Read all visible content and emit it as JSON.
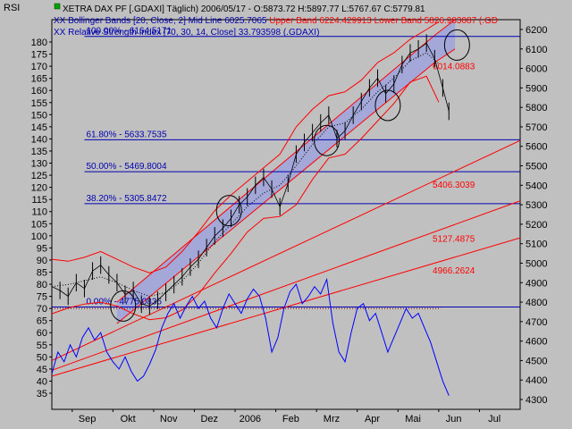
{
  "chart_data": {
    "type": "line",
    "corner_label": "RSI",
    "header": {
      "line1": "XETRA DAX PF [.GDAXI]  Täglich) 2006/05/17 - O:5873.72 H:5897.77 L:5767.67 C:5779.81",
      "line2_prefix": "XX Bollinger Bands [20, Close, 2] Mid Line 6025.7065 ",
      "line2_red": "Upper Band 6224.429913 Lower Band 5826.983087 (.GD",
      "line3": "XX Relative Strength Index [70, 30, 14, Close] 33.793598 (.GDAXI)"
    },
    "x_tick_labels": [
      {
        "label": "Sep",
        "t": 1
      },
      {
        "label": "Okt",
        "t": 2
      },
      {
        "label": "Nov",
        "t": 3
      },
      {
        "label": "Dez",
        "t": 4
      },
      {
        "label": "2006",
        "t": 5
      },
      {
        "label": "Feb",
        "t": 6
      },
      {
        "label": "Mrz",
        "t": 7
      },
      {
        "label": "Apr",
        "t": 8
      },
      {
        "label": "Mai",
        "t": 9
      },
      {
        "label": "Jun",
        "t": 10
      },
      {
        "label": "Jul",
        "t": 11
      }
    ],
    "x_range": [
      0,
      11.5
    ],
    "left_axis": {
      "name": "RSI",
      "min": 35,
      "max": 180,
      "step": 5,
      "ticks": [
        180,
        175,
        170,
        165,
        160,
        155,
        150,
        145,
        140,
        135,
        130,
        125,
        120,
        115,
        110,
        105,
        100,
        95,
        90,
        85,
        80,
        75,
        70,
        65,
        60,
        55,
        50,
        45,
        40,
        35
      ]
    },
    "right_axis": {
      "name": "Price",
      "min": 4300,
      "max": 6200,
      "step": 100,
      "ticks": [
        6200,
        6100,
        6000,
        5900,
        5800,
        5700,
        5600,
        5500,
        5400,
        5300,
        5200,
        5100,
        5000,
        4900,
        4800,
        4700,
        4600,
        4500,
        4400,
        4300
      ]
    },
    "fibonacci_levels": [
      {
        "label": "100.00% - 6164.5171",
        "value": 6164.5171
      },
      {
        "label": "61.80% - 5633.7535",
        "value": 5633.7535
      },
      {
        "label": "50.00% - 5469.8004",
        "value": 5469.8004
      },
      {
        "label": "38.20% - 5305.8472",
        "value": 5305.8472
      },
      {
        "label": "0.00% - 4775.0836",
        "value": 4775.0836
      }
    ],
    "trendline_labels": [
      {
        "label": "6014.0883",
        "value": 6014.0883
      },
      {
        "label": "5406.3039",
        "value": 5406.3039
      },
      {
        "label": "5127.4875",
        "value": 5127.4875
      },
      {
        "label": "4966.2624",
        "value": 4966.2624
      }
    ],
    "trendlines": [
      {
        "from": [
          0,
          4500
        ],
        "to": [
          11.5,
          5630
        ]
      },
      {
        "from": [
          0,
          4450
        ],
        "to": [
          11.5,
          5320
        ]
      },
      {
        "from": [
          0,
          4420
        ],
        "to": [
          11.5,
          5130
        ]
      }
    ],
    "channel": {
      "upper": [
        [
          1.6,
          4800
        ],
        [
          9.4,
          6170
        ]
      ],
      "lower": [
        [
          1.6,
          4690
        ],
        [
          9.4,
          6030
        ]
      ],
      "extension_upper": [
        [
          9.4,
          6170
        ],
        [
          9.9,
          6250
        ]
      ],
      "extension_lower": [
        [
          9.4,
          6030
        ],
        [
          9.9,
          6100
        ]
      ]
    },
    "price_close": [
      [
        0.0,
        4880
      ],
      [
        0.2,
        4860
      ],
      [
        0.4,
        4830
      ],
      [
        0.6,
        4900
      ],
      [
        0.8,
        4870
      ],
      [
        1.0,
        4960
      ],
      [
        1.2,
        4990
      ],
      [
        1.4,
        4940
      ],
      [
        1.6,
        4900
      ],
      [
        1.8,
        4840
      ],
      [
        2.0,
        4860
      ],
      [
        2.2,
        4790
      ],
      [
        2.4,
        4780
      ],
      [
        2.6,
        4810
      ],
      [
        2.8,
        4850
      ],
      [
        3.0,
        4890
      ],
      [
        3.2,
        4930
      ],
      [
        3.4,
        4980
      ],
      [
        3.6,
        5020
      ],
      [
        3.8,
        5080
      ],
      [
        4.0,
        5140
      ],
      [
        4.2,
        5180
      ],
      [
        4.4,
        5230
      ],
      [
        4.6,
        5300
      ],
      [
        4.8,
        5340
      ],
      [
        5.0,
        5400
      ],
      [
        5.2,
        5440
      ],
      [
        5.4,
        5380
      ],
      [
        5.6,
        5290
      ],
      [
        5.8,
        5410
      ],
      [
        6.0,
        5560
      ],
      [
        6.2,
        5620
      ],
      [
        6.4,
        5670
      ],
      [
        6.6,
        5720
      ],
      [
        6.8,
        5760
      ],
      [
        7.0,
        5640
      ],
      [
        7.2,
        5680
      ],
      [
        7.4,
        5760
      ],
      [
        7.6,
        5830
      ],
      [
        7.8,
        5900
      ],
      [
        8.0,
        5950
      ],
      [
        8.2,
        5870
      ],
      [
        8.4,
        5920
      ],
      [
        8.6,
        6020
      ],
      [
        8.8,
        6080
      ],
      [
        9.0,
        6100
      ],
      [
        9.2,
        6130
      ],
      [
        9.4,
        6050
      ],
      [
        9.6,
        5900
      ],
      [
        9.75,
        5780
      ]
    ],
    "bollinger_upper": [
      [
        0.0,
        5020
      ],
      [
        0.4,
        5010
      ],
      [
        0.8,
        5030
      ],
      [
        1.2,
        5060
      ],
      [
        1.6,
        5020
      ],
      [
        2.0,
        4980
      ],
      [
        2.4,
        4950
      ],
      [
        2.8,
        4980
      ],
      [
        3.2,
        5060
      ],
      [
        3.6,
        5160
      ],
      [
        4.0,
        5270
      ],
      [
        4.4,
        5350
      ],
      [
        4.8,
        5420
      ],
      [
        5.2,
        5490
      ],
      [
        5.6,
        5560
      ],
      [
        6.0,
        5700
      ],
      [
        6.4,
        5790
      ],
      [
        6.8,
        5860
      ],
      [
        7.2,
        5880
      ],
      [
        7.6,
        5940
      ],
      [
        8.0,
        6030
      ],
      [
        8.4,
        6080
      ],
      [
        8.8,
        6150
      ],
      [
        9.2,
        6200
      ],
      [
        9.5,
        6240
      ]
    ],
    "bollinger_mid": [
      [
        0.0,
        4880
      ],
      [
        0.4,
        4890
      ],
      [
        0.8,
        4910
      ],
      [
        1.2,
        4930
      ],
      [
        1.6,
        4900
      ],
      [
        2.0,
        4860
      ],
      [
        2.4,
        4830
      ],
      [
        2.8,
        4850
      ],
      [
        3.2,
        4910
      ],
      [
        3.6,
        5000
      ],
      [
        4.0,
        5110
      ],
      [
        4.4,
        5200
      ],
      [
        4.8,
        5290
      ],
      [
        5.2,
        5360
      ],
      [
        5.6,
        5400
      ],
      [
        6.0,
        5500
      ],
      [
        6.4,
        5610
      ],
      [
        6.8,
        5700
      ],
      [
        7.2,
        5720
      ],
      [
        7.6,
        5790
      ],
      [
        8.0,
        5880
      ],
      [
        8.4,
        5950
      ],
      [
        8.8,
        6040
      ],
      [
        9.2,
        6080
      ],
      [
        9.5,
        6025
      ]
    ],
    "bollinger_lower": [
      [
        0.0,
        4740
      ],
      [
        0.4,
        4770
      ],
      [
        0.8,
        4790
      ],
      [
        1.2,
        4800
      ],
      [
        1.6,
        4780
      ],
      [
        2.0,
        4740
      ],
      [
        2.4,
        4710
      ],
      [
        2.8,
        4720
      ],
      [
        3.2,
        4760
      ],
      [
        3.6,
        4840
      ],
      [
        4.0,
        4950
      ],
      [
        4.4,
        5050
      ],
      [
        4.8,
        5160
      ],
      [
        5.2,
        5230
      ],
      [
        5.6,
        5240
      ],
      [
        6.0,
        5300
      ],
      [
        6.4,
        5430
      ],
      [
        6.8,
        5540
      ],
      [
        7.2,
        5560
      ],
      [
        7.6,
        5640
      ],
      [
        8.0,
        5730
      ],
      [
        8.4,
        5820
      ],
      [
        8.8,
        5930
      ],
      [
        9.2,
        5960
      ],
      [
        9.5,
        5827
      ]
    ],
    "rsi": [
      [
        0.0,
        43
      ],
      [
        0.15,
        52
      ],
      [
        0.3,
        48
      ],
      [
        0.45,
        55
      ],
      [
        0.6,
        50
      ],
      [
        0.75,
        58
      ],
      [
        0.9,
        62
      ],
      [
        1.05,
        57
      ],
      [
        1.2,
        60
      ],
      [
        1.35,
        52
      ],
      [
        1.5,
        48
      ],
      [
        1.65,
        45
      ],
      [
        1.8,
        50
      ],
      [
        1.95,
        44
      ],
      [
        2.1,
        40
      ],
      [
        2.25,
        42
      ],
      [
        2.4,
        47
      ],
      [
        2.55,
        53
      ],
      [
        2.7,
        62
      ],
      [
        2.85,
        68
      ],
      [
        3.0,
        72
      ],
      [
        3.15,
        66
      ],
      [
        3.3,
        71
      ],
      [
        3.45,
        75
      ],
      [
        3.6,
        70
      ],
      [
        3.75,
        73
      ],
      [
        3.9,
        66
      ],
      [
        4.05,
        62
      ],
      [
        4.2,
        70
      ],
      [
        4.35,
        76
      ],
      [
        4.5,
        72
      ],
      [
        4.65,
        68
      ],
      [
        4.8,
        74
      ],
      [
        4.95,
        78
      ],
      [
        5.1,
        75
      ],
      [
        5.25,
        66
      ],
      [
        5.4,
        52
      ],
      [
        5.55,
        58
      ],
      [
        5.7,
        70
      ],
      [
        5.85,
        77
      ],
      [
        6.0,
        80
      ],
      [
        6.15,
        72
      ],
      [
        6.3,
        75
      ],
      [
        6.45,
        79
      ],
      [
        6.6,
        76
      ],
      [
        6.75,
        82
      ],
      [
        6.9,
        64
      ],
      [
        7.05,
        52
      ],
      [
        7.2,
        48
      ],
      [
        7.35,
        60
      ],
      [
        7.5,
        70
      ],
      [
        7.65,
        72
      ],
      [
        7.8,
        65
      ],
      [
        7.95,
        68
      ],
      [
        8.1,
        60
      ],
      [
        8.25,
        52
      ],
      [
        8.4,
        58
      ],
      [
        8.55,
        64
      ],
      [
        8.7,
        70
      ],
      [
        8.85,
        66
      ],
      [
        9.0,
        68
      ],
      [
        9.15,
        62
      ],
      [
        9.3,
        56
      ],
      [
        9.45,
        48
      ],
      [
        9.6,
        40
      ],
      [
        9.75,
        34
      ]
    ],
    "rsi_reference": 70,
    "circles": [
      {
        "t": 1.75,
        "v": 4780
      },
      {
        "t": 4.35,
        "v": 5270
      },
      {
        "t": 6.75,
        "v": 5630
      },
      {
        "t": 8.25,
        "v": 5810
      },
      {
        "t": 9.95,
        "v": 6120
      }
    ],
    "colors": {
      "background": "#c0c0c0",
      "price": "#000000",
      "bollinger": "#ff0000",
      "rsi": "#0000ff",
      "fibonacci": "#0000b0",
      "channel_fill": "#9aa0e0",
      "trendline": "#ff0000"
    }
  }
}
